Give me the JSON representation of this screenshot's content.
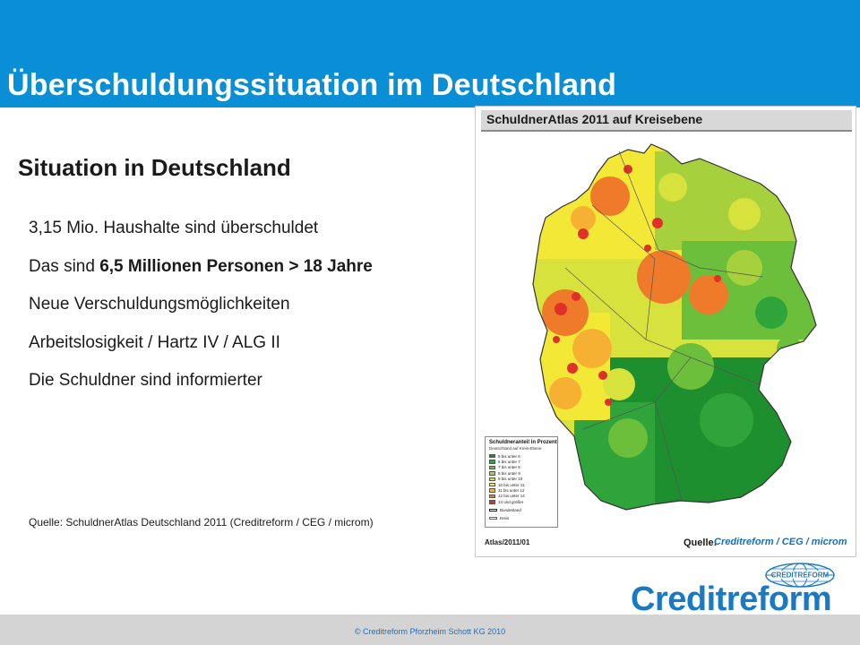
{
  "slide": {
    "title": "Überschuldungssituation im Deutschland",
    "subtitle": "Situation in Deutschland",
    "bullets": [
      {
        "pre": "3,15 Mio. Haushalte sind überschuldet",
        "bold": "",
        "post": ""
      },
      {
        "pre": "Das sind ",
        "bold": "6,5 Millionen Personen > 18 Jahre",
        "post": ""
      },
      {
        "pre": "Neue Verschuldungsmöglichkeiten",
        "bold": "",
        "post": ""
      },
      {
        "pre": "Arbeitslosigkeit / Hartz IV / ALG II",
        "bold": "",
        "post": ""
      },
      {
        "pre": "Die Schuldner sind informierter",
        "bold": "",
        "post": ""
      }
    ],
    "source": "Quelle: SchuldnerAtlas Deutschland 2011 (Creditreform / CEG / microm)",
    "copyright": "© Creditreform Pforzheim Schott KG 2010"
  },
  "map": {
    "title": "SchuldnerAtlas 2011 auf Kreisebene",
    "atlas_code": "Atlas/2011/01",
    "source_label": "Quelle:",
    "source_org": "Creditreform / CEG / microm",
    "legend": {
      "title": "Schuldneranteil in Prozent",
      "subtitle": "Deutschland auf Kreis-Ebene",
      "items": [
        {
          "label": "5 bis unter 6",
          "color": "#1e8f2e"
        },
        {
          "label": "6 bis unter 7",
          "color": "#2fa43a"
        },
        {
          "label": "7 bis unter 8",
          "color": "#6cbf3a"
        },
        {
          "label": "8 bis unter 9",
          "color": "#a7d13c"
        },
        {
          "label": "9 bis unter 10",
          "color": "#d8e23d"
        },
        {
          "label": "10 bis unter 11",
          "color": "#f4e836"
        },
        {
          "label": "11 bis unter 12",
          "color": "#f6b133"
        },
        {
          "label": "12 bis unter 14",
          "color": "#ee7a2a"
        },
        {
          "label": "14 und größer",
          "color": "#e0302a"
        }
      ],
      "boundary_state": "Bundesland",
      "boundary_district": "Kreis"
    }
  },
  "logo": {
    "wordmark": "Creditreform",
    "globe_text": "CREDITREFORM",
    "brand_color": "#1a79c4"
  },
  "colors": {
    "header_blue": "#0a8fd6",
    "footer_gray": "#d4d4d4"
  }
}
